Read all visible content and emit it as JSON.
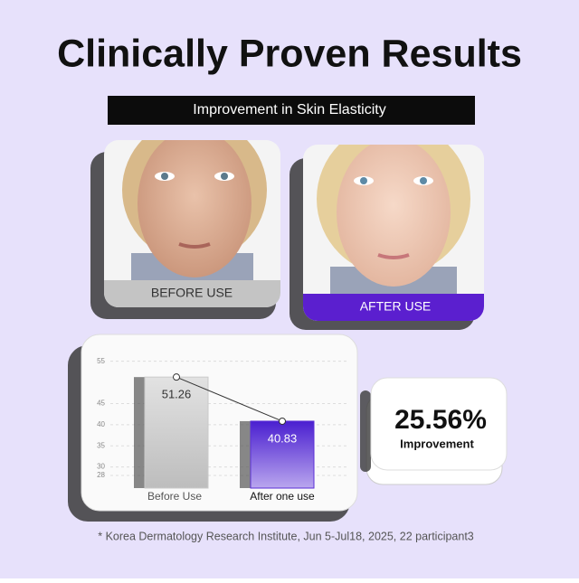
{
  "title": "Clinically Proven Results",
  "subtitle": "Improvement in Skin Elasticity",
  "photos": {
    "before": "BEFORE USE",
    "after": "AFTER USE"
  },
  "chart_data": {
    "type": "bar",
    "categories": [
      "Before Use",
      "After one use"
    ],
    "values": [
      51.26,
      40.83
    ],
    "colors": [
      "#c9c9c9",
      "#5b2fd6"
    ],
    "ylim": [
      25,
      56
    ],
    "yticks": [
      55,
      45,
      40,
      35,
      30,
      28
    ],
    "grid": true
  },
  "stat": {
    "value": "25.56%",
    "label": "Improvement"
  },
  "footnote": "*  Korea Dermatology Research Institute, Jun 5-Jul18, 2025, 22 participant3"
}
